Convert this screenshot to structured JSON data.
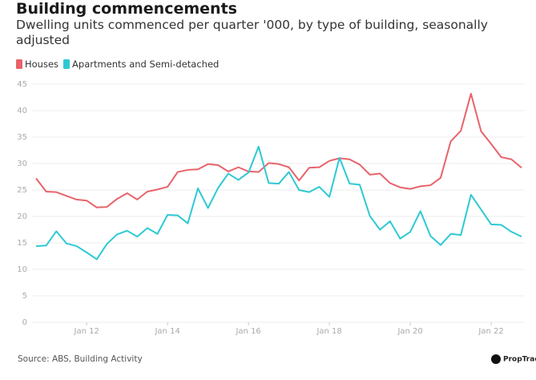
{
  "chart_data": {
    "type": "line",
    "title": "Building commencements",
    "subtitle": "Dwelling units commenced per quarter '000, by type of building, seasonally adjusted",
    "source": "Source: ABS, Building Activity",
    "logo": "PropTrack",
    "x": [
      2010.75,
      2011,
      2011.25,
      2011.5,
      2011.75,
      2012,
      2012.25,
      2012.5,
      2012.75,
      2013,
      2013.25,
      2013.5,
      2013.75,
      2014,
      2014.25,
      2014.5,
      2014.75,
      2015,
      2015.25,
      2015.5,
      2015.75,
      2016,
      2016.25,
      2016.5,
      2016.75,
      2017,
      2017.25,
      2017.5,
      2017.75,
      2018,
      2018.25,
      2018.5,
      2018.75,
      2019,
      2019.25,
      2019.5,
      2019.75,
      2020,
      2020.25,
      2020.5,
      2020.75,
      2021,
      2021.25,
      2021.5,
      2021.75,
      2022,
      2022.25,
      2022.5,
      2022.75
    ],
    "series": [
      {
        "name": "Houses",
        "color": "#e8636b",
        "values": [
          27.2,
          24.7,
          24.6,
          23.9,
          23.2,
          23.0,
          21.7,
          21.8,
          23.3,
          24.4,
          23.2,
          24.7,
          25.1,
          25.6,
          28.4,
          28.8,
          28.9,
          29.9,
          29.7,
          28.5,
          29.3,
          28.5,
          28.4,
          30.1,
          29.9,
          29.3,
          26.8,
          29.2,
          29.3,
          30.5,
          31.0,
          30.8,
          29.8,
          27.9,
          28.1,
          26.3,
          25.5,
          25.2,
          25.7,
          25.9,
          27.3,
          34.2,
          36.2,
          43.2,
          36.1,
          33.7,
          31.2,
          30.8,
          29.2
        ]
      },
      {
        "name": "Apartments and Semi-detached",
        "color": "#2ec9d3",
        "values": [
          14.4,
          14.5,
          17.2,
          14.9,
          14.4,
          13.2,
          11.9,
          14.8,
          16.6,
          17.3,
          16.2,
          17.8,
          16.7,
          20.3,
          20.2,
          18.7,
          25.3,
          21.6,
          25.4,
          28.1,
          26.9,
          28.3,
          33.2,
          26.3,
          26.2,
          28.4,
          25.0,
          24.6,
          25.6,
          23.7,
          31.1,
          26.2,
          26.0,
          20.1,
          17.5,
          19.1,
          15.8,
          17.1,
          21.0,
          16.3,
          14.6,
          16.7,
          16.5,
          24.1,
          21.3,
          18.5,
          18.4,
          17.1,
          16.2
        ]
      }
    ],
    "xlim": [
      2010.65,
      2022.83
    ],
    "xticks": [
      {
        "value": 2012,
        "label": "Jan 12"
      },
      {
        "value": 2014,
        "label": "Jan 14"
      },
      {
        "value": 2016,
        "label": "Jan 16"
      },
      {
        "value": 2018,
        "label": "Jan 18"
      },
      {
        "value": 2020,
        "label": "Jan 20"
      },
      {
        "value": 2022,
        "label": "Jan 22"
      }
    ],
    "ylim": [
      0,
      45
    ],
    "yticks": [
      0,
      5,
      10,
      15,
      20,
      25,
      30,
      35,
      40,
      45
    ],
    "grid": true
  }
}
